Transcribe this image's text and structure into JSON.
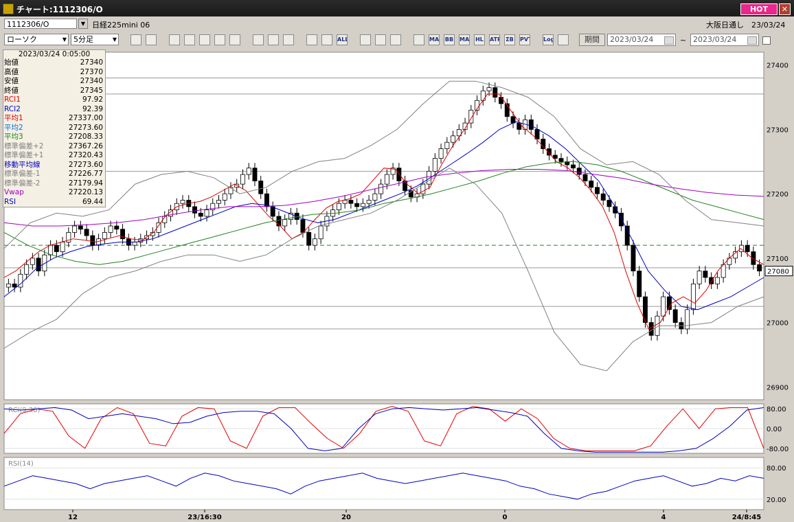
{
  "window": {
    "title": "チャート:1112306/O",
    "hot": "HOT",
    "close": "✕"
  },
  "header": {
    "symbol_code": "1112306/O",
    "symbol_name": "日経225mini 06",
    "session": "大阪日通し",
    "date": "23/03/24"
  },
  "toolbar": {
    "chart_type": "ローソク",
    "interval": "5分足",
    "buttons": [
      "search",
      "cursor",
      "draw",
      "ruler",
      "chart",
      "bar",
      "eraser",
      "pen",
      "select",
      "rotate",
      "zoom-in",
      "zoom-out",
      "all",
      "tool",
      "brush",
      "palette",
      "grid",
      "MA",
      "BB",
      "MAE",
      "HL",
      "ATR",
      "DE",
      "PVT",
      "Log",
      "export"
    ],
    "button_labels": {
      "all": "ALL",
      "MA": "MA",
      "BB": "BB",
      "MAE": "MAE",
      "HL": "HL",
      "ATR": "ATR",
      "DE": "ΣΒ",
      "PVT": "PVT",
      "Log": "Log"
    },
    "period_label": "期間",
    "date_from": "2023/03/24",
    "date_to": "2023/03/24",
    "tilde": "~"
  },
  "info_panel": {
    "datetime": "2023/03/24 0:05:00",
    "rows": [
      {
        "label": "始値",
        "value": "27340",
        "color": "#000000"
      },
      {
        "label": "高値",
        "value": "27370",
        "color": "#000000"
      },
      {
        "label": "安値",
        "value": "27340",
        "color": "#000000"
      },
      {
        "label": "終値",
        "value": "27345",
        "color": "#000000"
      },
      {
        "label": "RCI1",
        "value": "97.92",
        "color": "#e00000"
      },
      {
        "label": "RCI2",
        "value": "92.39",
        "color": "#0000c0"
      },
      {
        "label": "平均1",
        "value": "27337.00",
        "color": "#e00000"
      },
      {
        "label": "平均2",
        "value": "27273.60",
        "color": "#0070e0"
      },
      {
        "label": "平均3",
        "value": "27208.33",
        "color": "#208020"
      },
      {
        "label": "標準偏差+2",
        "value": "27367.26",
        "color": "#808080"
      },
      {
        "label": "標準偏差+1",
        "value": "27320.43",
        "color": "#808080"
      },
      {
        "label": "移動平均線",
        "value": "27273.60",
        "color": "#0000c0"
      },
      {
        "label": "標準偏差-1",
        "value": "27226.77",
        "color": "#808080"
      },
      {
        "label": "標準偏差-2",
        "value": "27179.94",
        "color": "#808080"
      },
      {
        "label": "Vwap",
        "value": "27220.13",
        "color": "#a000c0"
      },
      {
        "label": "RSI",
        "value": "69.44",
        "color": "#0000c0"
      }
    ]
  },
  "chart_data": [
    {
      "type": "line",
      "panel": "main",
      "y_axis_ticks": [
        "27400",
        "27300",
        "27200",
        "27100",
        "27000",
        "26900"
      ],
      "ylim": [
        26880,
        27420
      ],
      "last_price_label": "27080",
      "dashed_level": 27120,
      "horizontal_lines": [
        27380,
        27355,
        27235,
        27085,
        27025,
        26990
      ],
      "x_tick_labels": [
        "12",
        "23/16:30",
        "20",
        "0",
        "4",
        "24/8:45"
      ],
      "candles_close": [
        27060,
        27055,
        27075,
        27090,
        27100,
        27080,
        27105,
        27120,
        27110,
        27125,
        27140,
        27150,
        27145,
        27135,
        27120,
        27130,
        27140,
        27150,
        27145,
        27130,
        27120,
        27125,
        27130,
        27135,
        27140,
        27155,
        27165,
        27175,
        27185,
        27190,
        27180,
        27170,
        27165,
        27175,
        27185,
        27190,
        27200,
        27210,
        27215,
        27230,
        27240,
        27220,
        27200,
        27180,
        27165,
        27150,
        27160,
        27170,
        27160,
        27140,
        27120,
        27130,
        27150,
        27165,
        27175,
        27185,
        27190,
        27185,
        27180,
        27185,
        27190,
        27200,
        27215,
        27230,
        27240,
        27220,
        27205,
        27195,
        27200,
        27215,
        27235,
        27255,
        27270,
        27280,
        27290,
        27300,
        27310,
        27330,
        27345,
        27360,
        27365,
        27350,
        27340,
        27320,
        27310,
        27300,
        27315,
        27300,
        27285,
        27270,
        27260,
        27255,
        27250,
        27245,
        27240,
        27230,
        27220,
        27210,
        27200,
        27190,
        27180,
        27170,
        27150,
        27120,
        27080,
        27040,
        27000,
        26980,
        27010,
        27040,
        27020,
        27000,
        26990,
        27020,
        27060,
        27080,
        27070,
        27060,
        27070,
        27090,
        27100,
        27110,
        27120,
        27110,
        27090,
        27080
      ],
      "series": [
        {
          "name": "平均1",
          "color": "#e00000",
          "values": [
            27070,
            27080,
            27095,
            27110,
            27120,
            27125,
            27130,
            27128,
            27125,
            27130,
            27135,
            27130,
            27128,
            27140,
            27165,
            27180,
            27185,
            27188,
            27195,
            27205,
            27215,
            27205,
            27185,
            27165,
            27150,
            27130,
            27140,
            27160,
            27178,
            27188,
            27192,
            27200,
            27220,
            27240,
            27238,
            27215,
            27200,
            27210,
            27245,
            27275,
            27300,
            27330,
            27355,
            27355,
            27330,
            27305,
            27290,
            27270,
            27250,
            27240,
            27225,
            27205,
            27180,
            27140,
            27080,
            27030,
            26990,
            27000,
            27030,
            27040,
            27030,
            27050,
            27080,
            27100,
            27115,
            27100,
            27090
          ]
        },
        {
          "name": "平均2",
          "color": "#0000c0",
          "values": [
            27040,
            27060,
            27085,
            27100,
            27110,
            27118,
            27122,
            27125,
            27125,
            27130,
            27140,
            27150,
            27160,
            27170,
            27180,
            27185,
            27182,
            27172,
            27162,
            27155,
            27160,
            27170,
            27180,
            27190,
            27200,
            27212,
            27228,
            27245,
            27262,
            27280,
            27300,
            27312,
            27305,
            27290,
            27270,
            27245,
            27220,
            27180,
            27130,
            27080,
            27050,
            27025,
            27020,
            27030,
            27040,
            27055,
            27070
          ]
        },
        {
          "name": "平均3",
          "color": "#208020",
          "values": [
            27140,
            27120,
            27105,
            27095,
            27090,
            27095,
            27105,
            27115,
            27125,
            27135,
            27145,
            27155,
            27162,
            27168,
            27170,
            27175,
            27185,
            27192,
            27200,
            27210,
            27220,
            27232,
            27242,
            27248,
            27250,
            27245,
            27235,
            27220,
            27205,
            27190,
            27180,
            27170,
            27160
          ]
        },
        {
          "name": "Vwap",
          "color": "#a000c0",
          "values": [
            27155,
            27150,
            27150,
            27152,
            27155,
            27160,
            27168,
            27175,
            27180,
            27180,
            27182,
            27188,
            27196,
            27206,
            27216,
            27226,
            27232,
            27236,
            27238,
            27238,
            27236,
            27230,
            27224,
            27215,
            27208,
            27202,
            27198,
            27196
          ]
        },
        {
          "name": "標準偏差+2",
          "color": "#808080",
          "values": [
            27115,
            27155,
            27170,
            27165,
            27175,
            27215,
            27230,
            27235,
            27225,
            27200,
            27210,
            27235,
            27250,
            27255,
            27275,
            27300,
            27340,
            27375,
            27375,
            27365,
            27350,
            27320,
            27270,
            27245,
            27250,
            27230,
            27190,
            27160,
            27155,
            27150
          ]
        },
        {
          "name": "標準偏差-2",
          "color": "#808080",
          "values": [
            26960,
            26985,
            27005,
            27045,
            27070,
            27080,
            27095,
            27105,
            27105,
            27095,
            27105,
            27130,
            27150,
            27160,
            27170,
            27190,
            27215,
            27240,
            27215,
            27170,
            27080,
            26985,
            26935,
            26925,
            26970,
            26995,
            26995,
            27000,
            27025,
            27040
          ]
        }
      ]
    },
    {
      "type": "line",
      "panel": "RCI",
      "title": "RCI(9,36)",
      "ylim": [
        -100,
        100
      ],
      "y_axis_ticks": [
        "80.00",
        "0.00",
        "-80.00"
      ],
      "series": [
        {
          "name": "RCI1",
          "color": "#e00000",
          "values": [
            -20,
            60,
            80,
            70,
            -30,
            -80,
            40,
            85,
            60,
            -60,
            -70,
            50,
            85,
            80,
            -50,
            -80,
            50,
            85,
            85,
            20,
            -40,
            -80,
            -20,
            70,
            90,
            70,
            -50,
            -70,
            60,
            90,
            80,
            30,
            80,
            40,
            -40,
            -80,
            -90,
            -90,
            -90,
            -90,
            -70,
            10,
            80,
            0,
            80,
            85,
            85,
            -80
          ]
        },
        {
          "name": "RCI2",
          "color": "#0000c0",
          "values": [
            80,
            75,
            80,
            85,
            75,
            40,
            50,
            60,
            50,
            40,
            20,
            25,
            50,
            65,
            70,
            70,
            60,
            0,
            -80,
            -90,
            -80,
            0,
            60,
            80,
            85,
            80,
            75,
            80,
            85,
            75,
            65,
            50,
            -20,
            -80,
            -90,
            -95,
            -95,
            -95,
            -95,
            -95,
            -90,
            -80,
            -40,
            10,
            75,
            85
          ]
        }
      ]
    },
    {
      "type": "line",
      "panel": "RSI",
      "title": "RSI(14)",
      "ylim": [
        0,
        100
      ],
      "y_axis_ticks": [
        "80.00",
        "20.00"
      ],
      "series": [
        {
          "name": "RSI",
          "color": "#0000c0",
          "values": [
            45,
            55,
            65,
            60,
            55,
            50,
            40,
            50,
            55,
            60,
            65,
            55,
            45,
            60,
            70,
            65,
            55,
            50,
            45,
            40,
            30,
            45,
            55,
            60,
            65,
            70,
            60,
            55,
            50,
            55,
            60,
            65,
            70,
            65,
            60,
            55,
            45,
            40,
            30,
            25,
            20,
            30,
            35,
            45,
            55,
            60,
            65,
            55,
            45,
            50,
            60,
            55,
            65,
            60
          ]
        }
      ]
    }
  ]
}
